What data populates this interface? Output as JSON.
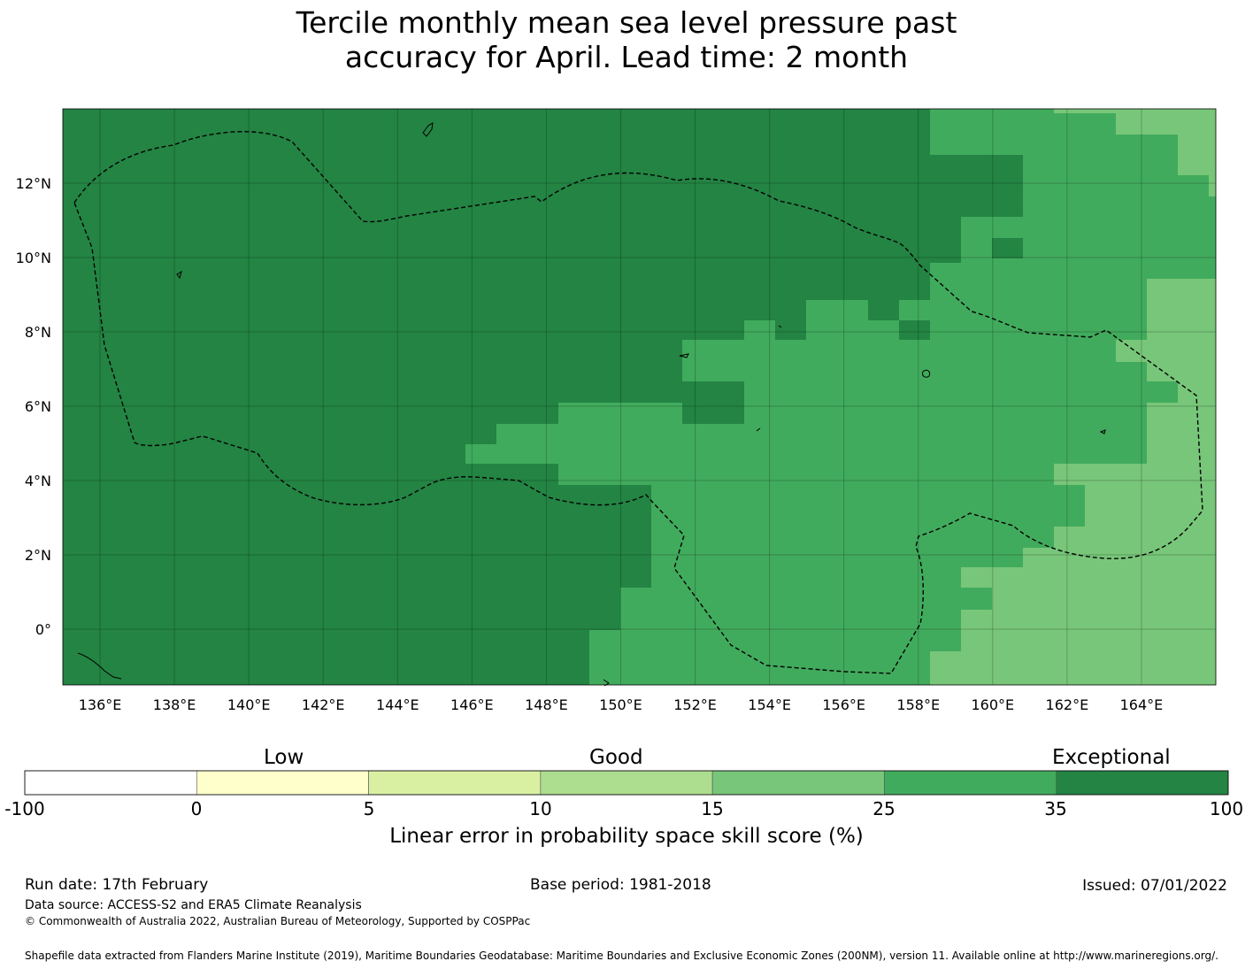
{
  "title": {
    "line1": "Tercile monthly mean sea level pressure past",
    "line2": "accuracy for April. Lead time: 2 month"
  },
  "map": {
    "lon_labels": [
      "136°E",
      "138°E",
      "140°E",
      "142°E",
      "144°E",
      "146°E",
      "148°E",
      "150°E",
      "152°E",
      "154°E",
      "156°E",
      "158°E",
      "160°E",
      "162°E",
      "164°E"
    ],
    "lat_labels": [
      "12°N",
      "10°N",
      "8°N",
      "6°N",
      "4°N",
      "2°N",
      "0°"
    ],
    "lon_values": [
      136,
      138,
      140,
      142,
      144,
      146,
      148,
      150,
      152,
      154,
      156,
      158,
      160,
      162,
      164
    ],
    "lat_values": [
      12,
      10,
      8,
      6,
      4,
      2,
      0
    ],
    "lon_range": [
      135,
      166
    ],
    "lat_range": [
      -1.5,
      14
    ],
    "eez_boundary_color": "#000000"
  },
  "colorbar": {
    "categories": [
      {
        "label": "Low",
        "position": "left"
      },
      {
        "label": "Good",
        "position": "center"
      },
      {
        "label": "Exceptional",
        "position": "right"
      }
    ],
    "ticks": [
      "-100",
      "0",
      "5",
      "10",
      "15",
      "25",
      "35",
      "100"
    ],
    "colors": [
      "#ffffff",
      "#ffffcc",
      "#d9f0a3",
      "#addd8e",
      "#78c679",
      "#41ab5d",
      "#238443"
    ],
    "title": "Linear error in probability space skill score (%)"
  },
  "footer": {
    "run_date": "Run date: 17th February",
    "base_period": "Base period: 1981-2018",
    "issued": "Issued: 07/01/2022",
    "data_source": "Data source: ACCESS-S2 and ERA5 Climate Reanalysis",
    "copyright": "© Commonwealth of Australia 2022, Australian Bureau of Meteorology, Supported by COSPPac",
    "shapefile": "Shapefile data extracted from Flanders Marine Institute (2019), Maritime Boundaries Geodatabase: Maritime Boundaries and Exclusive Economic Zones (200NM), version 11. Available online at http://www.marineregions.org/."
  }
}
